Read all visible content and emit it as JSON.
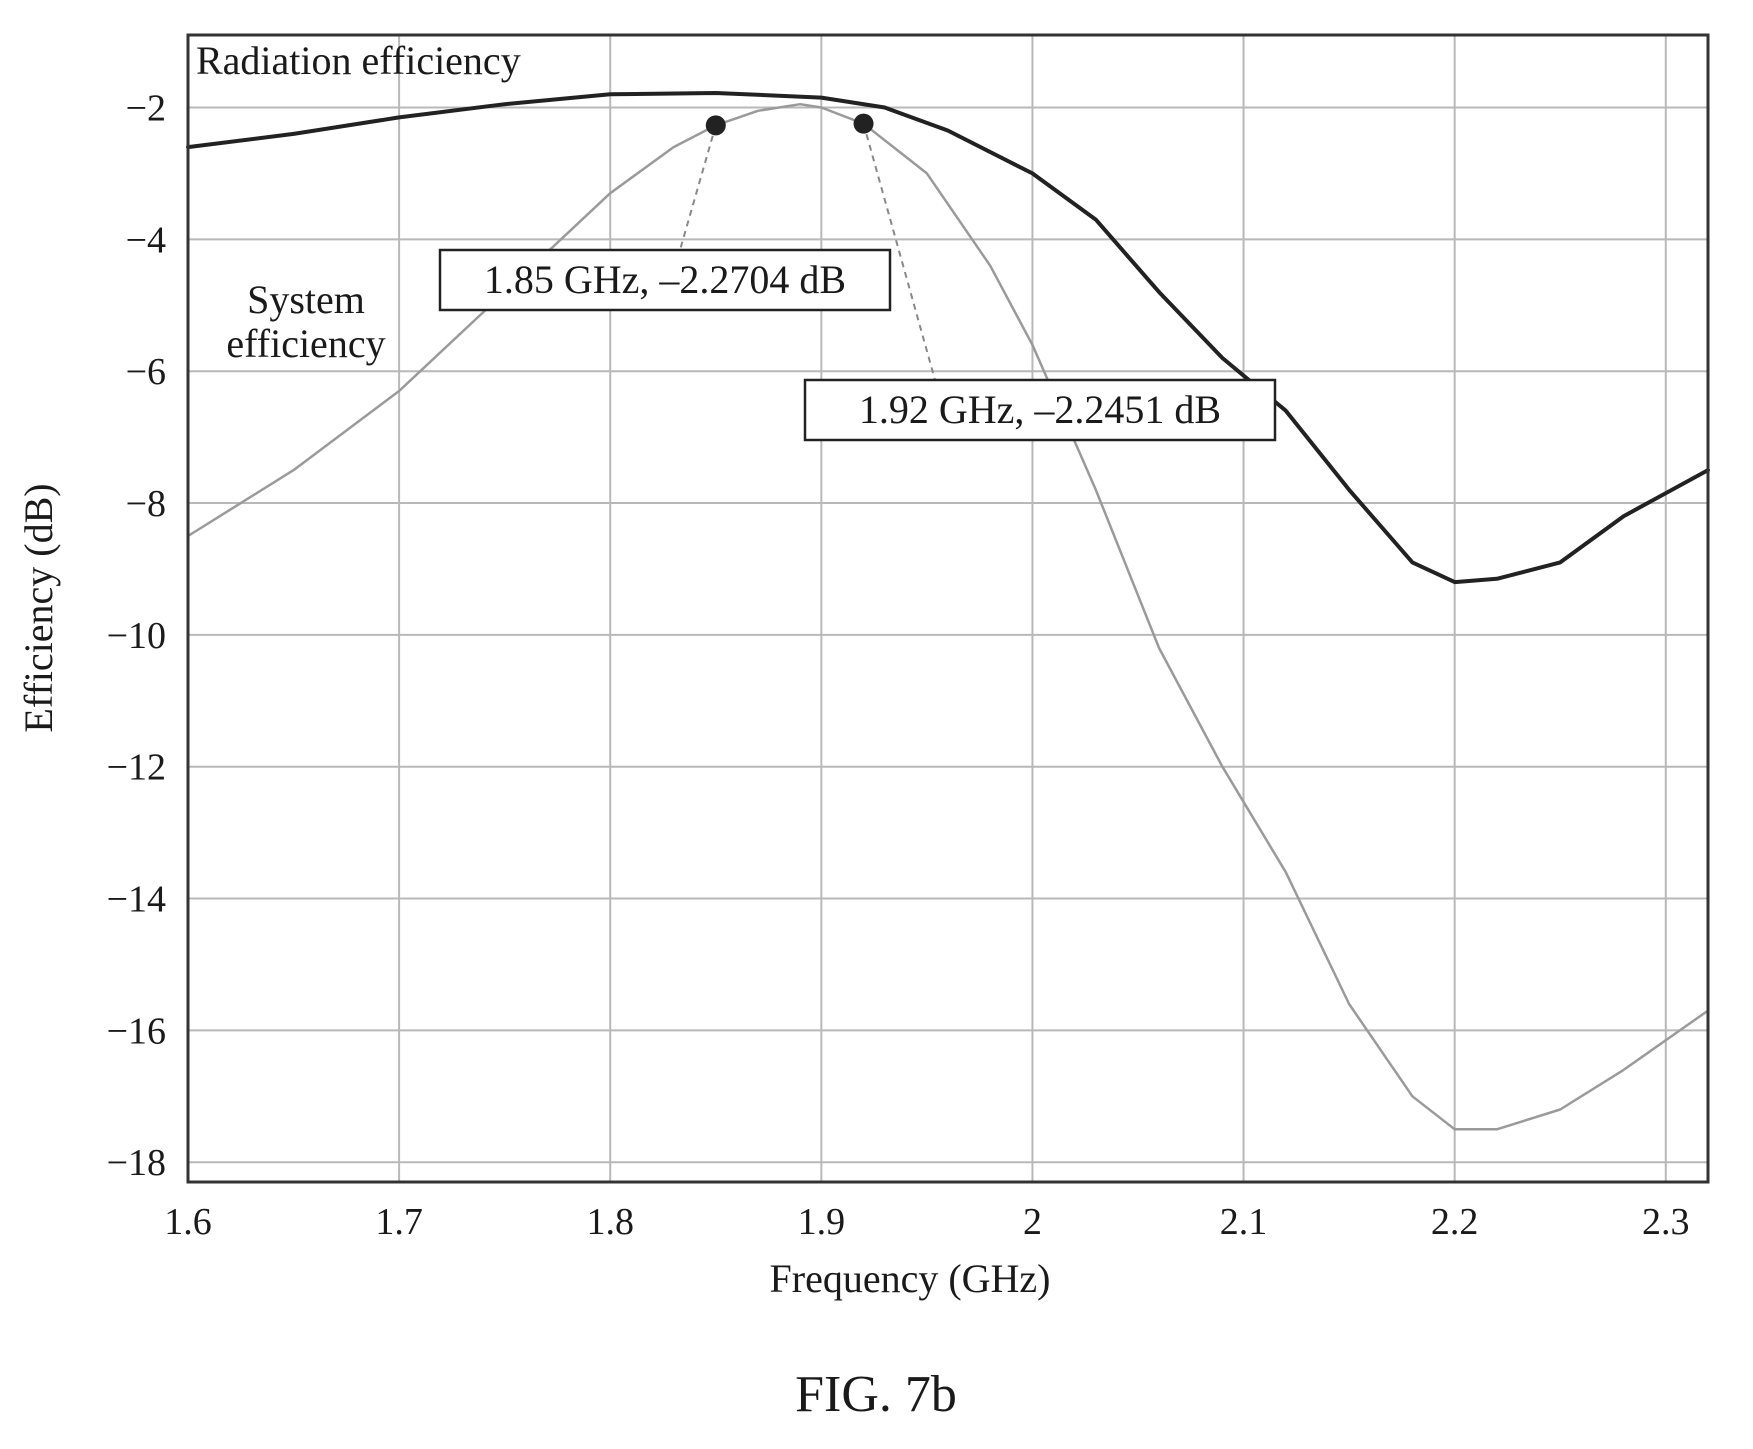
{
  "chart_data": {
    "type": "line",
    "title": "",
    "xlabel": "Frequency (GHz)",
    "ylabel": "Efficiency (dB)",
    "xlim": [
      1.6,
      2.32
    ],
    "ylim": [
      -18.3,
      -0.9
    ],
    "x_ticks": [
      1.6,
      1.7,
      1.8,
      1.9,
      2.0,
      2.1,
      2.2,
      2.3
    ],
    "x_tick_labels": [
      "1.6",
      "1.7",
      "1.8",
      "1.9",
      "2",
      "2.1",
      "2.2",
      "2.3"
    ],
    "y_ticks": [
      -2,
      -4,
      -6,
      -8,
      -10,
      -12,
      -14,
      -16,
      -18
    ],
    "y_tick_labels": [
      "−2",
      "−4",
      "−6",
      "−8",
      "−10",
      "−12",
      "−14",
      "−16",
      "−18"
    ],
    "grid": true,
    "series": [
      {
        "name": "Radiation efficiency",
        "color": "#222222",
        "x": [
          1.6,
          1.65,
          1.7,
          1.75,
          1.8,
          1.85,
          1.9,
          1.93,
          1.96,
          2.0,
          2.03,
          2.06,
          2.09,
          2.12,
          2.15,
          2.18,
          2.2,
          2.22,
          2.25,
          2.28,
          2.32
        ],
        "y": [
          -2.6,
          -2.4,
          -2.15,
          -1.95,
          -1.8,
          -1.78,
          -1.85,
          -2.0,
          -2.35,
          -3.0,
          -3.7,
          -4.8,
          -5.8,
          -6.6,
          -7.8,
          -8.9,
          -9.2,
          -9.15,
          -8.9,
          -8.2,
          -7.5
        ]
      },
      {
        "name": "System efficiency",
        "color": "#9a9a9a",
        "x": [
          1.6,
          1.65,
          1.7,
          1.75,
          1.8,
          1.83,
          1.85,
          1.87,
          1.89,
          1.9,
          1.92,
          1.95,
          1.98,
          2.0,
          2.03,
          2.06,
          2.09,
          2.12,
          2.15,
          2.18,
          2.2,
          2.22,
          2.25,
          2.28,
          2.32
        ],
        "y": [
          -8.5,
          -7.5,
          -6.3,
          -4.8,
          -3.3,
          -2.6,
          -2.2704,
          -2.05,
          -1.95,
          -2.0,
          -2.2451,
          -3.0,
          -4.4,
          -5.6,
          -7.8,
          -10.2,
          -12.0,
          -13.6,
          -15.6,
          -17.0,
          -17.5,
          -17.5,
          -17.2,
          -16.6,
          -15.7
        ]
      }
    ],
    "markers": [
      {
        "x": 1.85,
        "y": -2.2704,
        "label": "1.85 GHz, –2.2704 dB"
      },
      {
        "x": 1.92,
        "y": -2.2451,
        "label": "1.92 GHz, –2.2451 dB"
      }
    ],
    "annotations": {
      "radiation": "Radiation efficiency",
      "system_line1": "System",
      "system_line2": "efficiency"
    }
  },
  "caption": "FIG. 7b"
}
